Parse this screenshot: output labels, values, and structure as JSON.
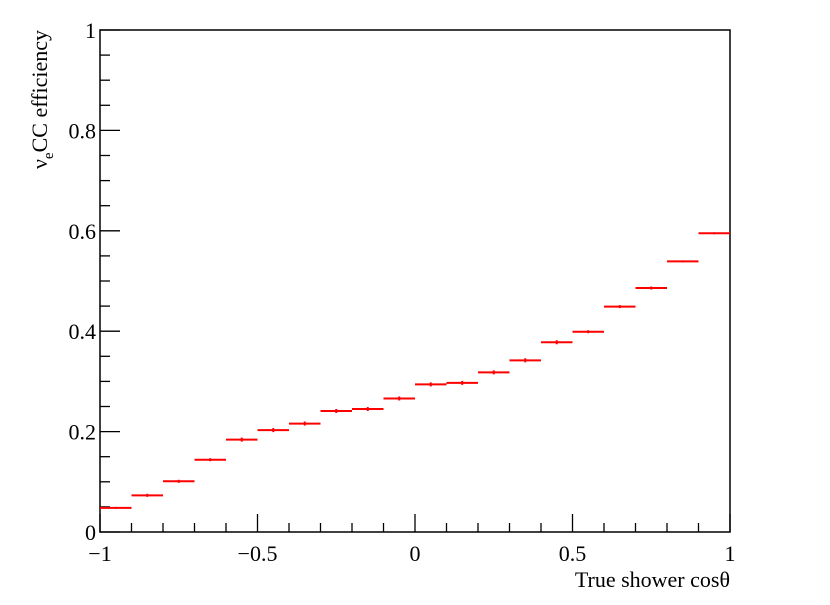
{
  "chart_data": {
    "type": "scatter",
    "title": "",
    "xlabel": "True shower cosθ",
    "ylabel": {
      "symbol": "ν",
      "subscript": "e",
      "rest": "CC efficiency"
    },
    "xlim": [
      -1,
      1
    ],
    "ylim": [
      0,
      1
    ],
    "x_ticks": [
      {
        "value": -1,
        "label": "−1"
      },
      {
        "value": -0.5,
        "label": "−0.5"
      },
      {
        "value": 0,
        "label": "0"
      },
      {
        "value": 0.5,
        "label": "0.5"
      },
      {
        "value": 1,
        "label": "1"
      }
    ],
    "y_ticks": [
      {
        "value": 0,
        "label": "0"
      },
      {
        "value": 0.2,
        "label": "0.2"
      },
      {
        "value": 0.4,
        "label": "0.4"
      },
      {
        "value": 0.6,
        "label": "0.6"
      },
      {
        "value": 0.8,
        "label": "0.8"
      },
      {
        "value": 1,
        "label": "1"
      }
    ],
    "x_minor_step": 0.1,
    "y_minor_step": 0.05,
    "grid": false,
    "legend": "none",
    "color": "#ff0000",
    "bin_width": 0.1,
    "points": [
      {
        "x": -0.95,
        "y": 0.048,
        "yerr": 0.002
      },
      {
        "x": -0.85,
        "y": 0.073,
        "yerr": 0.003
      },
      {
        "x": -0.75,
        "y": 0.101,
        "yerr": 0.003
      },
      {
        "x": -0.65,
        "y": 0.144,
        "yerr": 0.003
      },
      {
        "x": -0.55,
        "y": 0.184,
        "yerr": 0.004
      },
      {
        "x": -0.45,
        "y": 0.203,
        "yerr": 0.004
      },
      {
        "x": -0.35,
        "y": 0.216,
        "yerr": 0.004
      },
      {
        "x": -0.25,
        "y": 0.241,
        "yerr": 0.004
      },
      {
        "x": -0.15,
        "y": 0.245,
        "yerr": 0.004
      },
      {
        "x": -0.05,
        "y": 0.266,
        "yerr": 0.004
      },
      {
        "x": 0.05,
        "y": 0.294,
        "yerr": 0.004
      },
      {
        "x": 0.15,
        "y": 0.297,
        "yerr": 0.004
      },
      {
        "x": 0.25,
        "y": 0.318,
        "yerr": 0.004
      },
      {
        "x": 0.35,
        "y": 0.342,
        "yerr": 0.004
      },
      {
        "x": 0.45,
        "y": 0.378,
        "yerr": 0.004
      },
      {
        "x": 0.55,
        "y": 0.399,
        "yerr": 0.003
      },
      {
        "x": 0.65,
        "y": 0.449,
        "yerr": 0.003
      },
      {
        "x": 0.75,
        "y": 0.486,
        "yerr": 0.003
      },
      {
        "x": 0.85,
        "y": 0.539,
        "yerr": 0.002
      },
      {
        "x": 0.95,
        "y": 0.595,
        "yerr": 0.002
      }
    ]
  }
}
